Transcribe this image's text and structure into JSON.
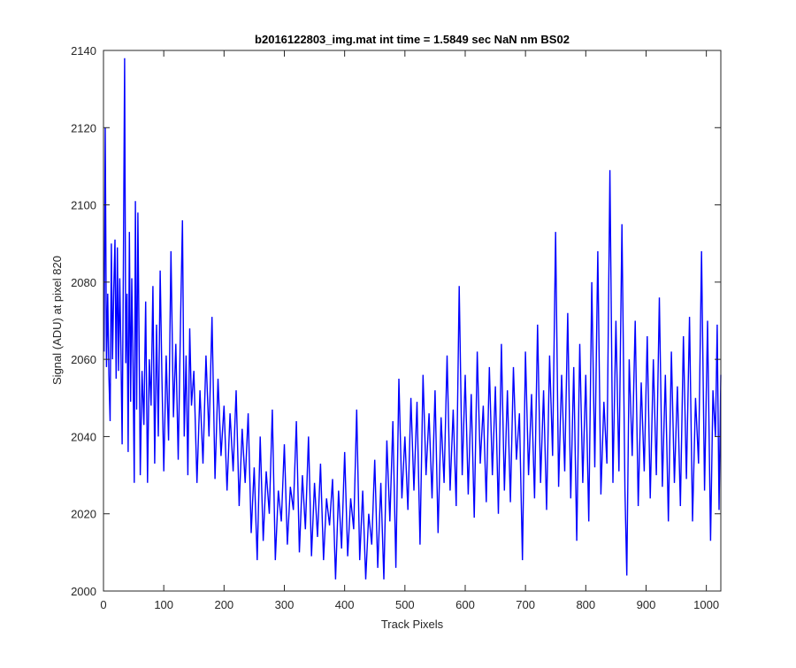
{
  "chart_data": {
    "type": "line",
    "title": "b2016122803_img.mat int time = 1.5849 sec  NaN nm BS02",
    "xlabel": "Track Pixels",
    "ylabel": "Signal (ADU) at pixel 820",
    "xlim": [
      0,
      1024
    ],
    "ylim": [
      2000,
      2140
    ],
    "xticks": [
      0,
      100,
      200,
      300,
      400,
      500,
      600,
      700,
      800,
      900,
      1000
    ],
    "yticks": [
      2000,
      2020,
      2040,
      2060,
      2080,
      2100,
      2120,
      2140
    ],
    "grid": false,
    "series": [
      {
        "name": "signal",
        "color": "#0000ff",
        "points": [
          [
            1,
            2062
          ],
          [
            3,
            2120
          ],
          [
            5,
            2058
          ],
          [
            7,
            2077
          ],
          [
            9,
            2056
          ],
          [
            11,
            2044
          ],
          [
            13,
            2090
          ],
          [
            15,
            2060
          ],
          [
            17,
            2078
          ],
          [
            19,
            2091
          ],
          [
            21,
            2055
          ],
          [
            23,
            2089
          ],
          [
            25,
            2057
          ],
          [
            27,
            2081
          ],
          [
            29,
            2061
          ],
          [
            31,
            2038
          ],
          [
            33,
            2084
          ],
          [
            35,
            2138
          ],
          [
            37,
            2059
          ],
          [
            39,
            2077
          ],
          [
            41,
            2036
          ],
          [
            43,
            2093
          ],
          [
            45,
            2049
          ],
          [
            47,
            2081
          ],
          [
            49,
            2058
          ],
          [
            51,
            2028
          ],
          [
            53,
            2101
          ],
          [
            55,
            2047
          ],
          [
            57,
            2098
          ],
          [
            59,
            2066
          ],
          [
            61,
            2030
          ],
          [
            64,
            2057
          ],
          [
            67,
            2043
          ],
          [
            70,
            2075
          ],
          [
            73,
            2028
          ],
          [
            76,
            2060
          ],
          [
            79,
            2048
          ],
          [
            82,
            2079
          ],
          [
            85,
            2033
          ],
          [
            88,
            2069
          ],
          [
            91,
            2040
          ],
          [
            94,
            2083
          ],
          [
            97,
            2055
          ],
          [
            100,
            2031
          ],
          [
            104,
            2061
          ],
          [
            108,
            2039
          ],
          [
            112,
            2088
          ],
          [
            116,
            2045
          ],
          [
            120,
            2064
          ],
          [
            124,
            2034
          ],
          [
            128,
            2072
          ],
          [
            131,
            2096
          ],
          [
            134,
            2040
          ],
          [
            137,
            2061
          ],
          [
            140,
            2030
          ],
          [
            143,
            2068
          ],
          [
            146,
            2048
          ],
          [
            150,
            2057
          ],
          [
            155,
            2028
          ],
          [
            160,
            2052
          ],
          [
            165,
            2033
          ],
          [
            170,
            2061
          ],
          [
            175,
            2040
          ],
          [
            180,
            2071
          ],
          [
            185,
            2029
          ],
          [
            190,
            2055
          ],
          [
            195,
            2035
          ],
          [
            200,
            2048
          ],
          [
            205,
            2026
          ],
          [
            210,
            2046
          ],
          [
            215,
            2031
          ],
          [
            220,
            2052
          ],
          [
            225,
            2022
          ],
          [
            230,
            2042
          ],
          [
            235,
            2028
          ],
          [
            240,
            2046
          ],
          [
            245,
            2015
          ],
          [
            250,
            2032
          ],
          [
            255,
            2008
          ],
          [
            260,
            2040
          ],
          [
            265,
            2013
          ],
          [
            270,
            2031
          ],
          [
            275,
            2020
          ],
          [
            280,
            2047
          ],
          [
            285,
            2008
          ],
          [
            290,
            2026
          ],
          [
            295,
            2018
          ],
          [
            300,
            2038
          ],
          [
            305,
            2012
          ],
          [
            310,
            2027
          ],
          [
            315,
            2021
          ],
          [
            320,
            2044
          ],
          [
            325,
            2010
          ],
          [
            330,
            2030
          ],
          [
            335,
            2016
          ],
          [
            340,
            2040
          ],
          [
            345,
            2009
          ],
          [
            350,
            2028
          ],
          [
            355,
            2014
          ],
          [
            360,
            2033
          ],
          [
            365,
            2008
          ],
          [
            370,
            2024
          ],
          [
            375,
            2017
          ],
          [
            380,
            2029
          ],
          [
            385,
            2003
          ],
          [
            390,
            2026
          ],
          [
            395,
            2011
          ],
          [
            400,
            2036
          ],
          [
            405,
            2009
          ],
          [
            410,
            2024
          ],
          [
            415,
            2016
          ],
          [
            420,
            2047
          ],
          [
            425,
            2008
          ],
          [
            430,
            2026
          ],
          [
            435,
            2003
          ],
          [
            440,
            2020
          ],
          [
            445,
            2012
          ],
          [
            450,
            2034
          ],
          [
            455,
            2006
          ],
          [
            460,
            2028
          ],
          [
            465,
            2003
          ],
          [
            470,
            2039
          ],
          [
            475,
            2018
          ],
          [
            480,
            2044
          ],
          [
            485,
            2006
          ],
          [
            490,
            2055
          ],
          [
            495,
            2024
          ],
          [
            500,
            2040
          ],
          [
            505,
            2021
          ],
          [
            510,
            2050
          ],
          [
            515,
            2026
          ],
          [
            520,
            2049
          ],
          [
            525,
            2012
          ],
          [
            530,
            2056
          ],
          [
            535,
            2030
          ],
          [
            540,
            2046
          ],
          [
            545,
            2024
          ],
          [
            550,
            2052
          ],
          [
            555,
            2015
          ],
          [
            560,
            2045
          ],
          [
            565,
            2028
          ],
          [
            570,
            2061
          ],
          [
            575,
            2026
          ],
          [
            580,
            2047
          ],
          [
            585,
            2022
          ],
          [
            590,
            2079
          ],
          [
            595,
            2030
          ],
          [
            600,
            2056
          ],
          [
            605,
            2025
          ],
          [
            610,
            2051
          ],
          [
            615,
            2019
          ],
          [
            620,
            2062
          ],
          [
            625,
            2033
          ],
          [
            630,
            2048
          ],
          [
            635,
            2023
          ],
          [
            640,
            2058
          ],
          [
            645,
            2030
          ],
          [
            650,
            2053
          ],
          [
            655,
            2020
          ],
          [
            660,
            2064
          ],
          [
            665,
            2026
          ],
          [
            670,
            2052
          ],
          [
            675,
            2023
          ],
          [
            680,
            2058
          ],
          [
            685,
            2034
          ],
          [
            690,
            2046
          ],
          [
            695,
            2008
          ],
          [
            700,
            2062
          ],
          [
            705,
            2030
          ],
          [
            710,
            2051
          ],
          [
            715,
            2024
          ],
          [
            720,
            2069
          ],
          [
            725,
            2028
          ],
          [
            730,
            2052
          ],
          [
            735,
            2021
          ],
          [
            740,
            2061
          ],
          [
            745,
            2035
          ],
          [
            750,
            2093
          ],
          [
            755,
            2027
          ],
          [
            760,
            2056
          ],
          [
            765,
            2031
          ],
          [
            770,
            2072
          ],
          [
            775,
            2024
          ],
          [
            780,
            2058
          ],
          [
            785,
            2013
          ],
          [
            790,
            2064
          ],
          [
            795,
            2028
          ],
          [
            800,
            2056
          ],
          [
            805,
            2018
          ],
          [
            810,
            2080
          ],
          [
            815,
            2032
          ],
          [
            820,
            2088
          ],
          [
            825,
            2025
          ],
          [
            830,
            2049
          ],
          [
            835,
            2033
          ],
          [
            840,
            2109
          ],
          [
            845,
            2028
          ],
          [
            850,
            2070
          ],
          [
            855,
            2031
          ],
          [
            860,
            2095
          ],
          [
            865,
            2026
          ],
          [
            868,
            2004
          ],
          [
            872,
            2060
          ],
          [
            877,
            2035
          ],
          [
            882,
            2070
          ],
          [
            887,
            2022
          ],
          [
            892,
            2054
          ],
          [
            897,
            2031
          ],
          [
            902,
            2066
          ],
          [
            907,
            2024
          ],
          [
            912,
            2060
          ],
          [
            917,
            2030
          ],
          [
            922,
            2076
          ],
          [
            927,
            2027
          ],
          [
            932,
            2056
          ],
          [
            937,
            2018
          ],
          [
            942,
            2062
          ],
          [
            947,
            2028
          ],
          [
            952,
            2053
          ],
          [
            957,
            2022
          ],
          [
            962,
            2066
          ],
          [
            967,
            2029
          ],
          [
            972,
            2071
          ],
          [
            977,
            2018
          ],
          [
            982,
            2050
          ],
          [
            987,
            2033
          ],
          [
            992,
            2088
          ],
          [
            997,
            2026
          ],
          [
            1002,
            2070
          ],
          [
            1007,
            2013
          ],
          [
            1011,
            2052
          ],
          [
            1015,
            2040
          ],
          [
            1018,
            2069
          ],
          [
            1021,
            2021
          ],
          [
            1024,
            2056
          ]
        ]
      }
    ]
  }
}
